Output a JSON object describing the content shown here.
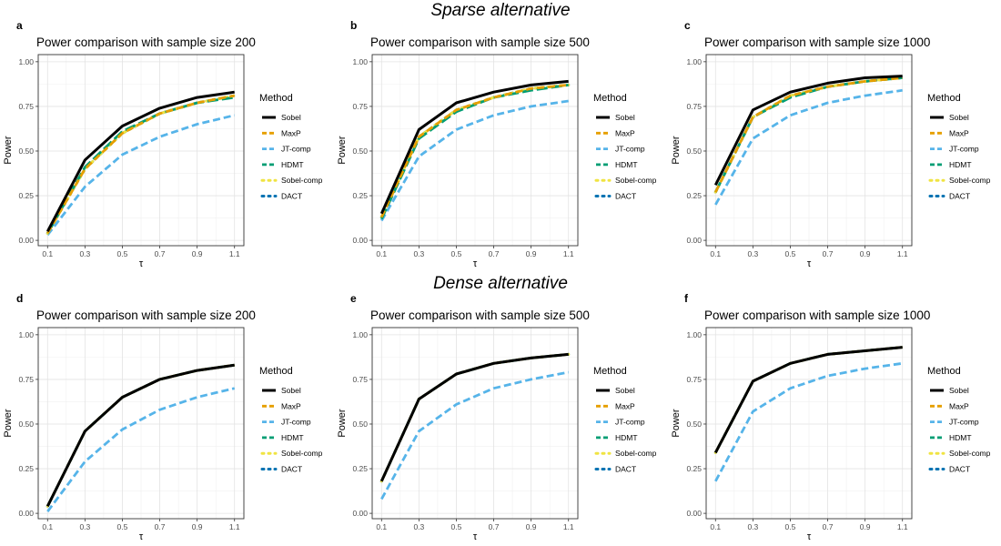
{
  "sections": [
    {
      "title": "Sparse alternative"
    },
    {
      "title": "Dense alternative"
    }
  ],
  "legend": {
    "title": "Method",
    "entries": [
      {
        "name": "Sobel",
        "color": "#000000",
        "dash": "solid"
      },
      {
        "name": "MaxP",
        "color": "#E69F00",
        "dash": "dashed"
      },
      {
        "name": "JT-comp",
        "color": "#56B4E9",
        "dash": "dashed"
      },
      {
        "name": "HDMT",
        "color": "#009E73",
        "dash": "longdash"
      },
      {
        "name": "Sobel-comp",
        "color": "#F0E442",
        "dash": "dotted"
      },
      {
        "name": "DACT",
        "color": "#0072B2",
        "dash": "dotted"
      }
    ]
  },
  "chart_data": [
    {
      "panel": "a",
      "type": "line",
      "title": "Power comparison with sample size 200",
      "xlabel": "τ",
      "ylabel": "Power",
      "x": [
        0.1,
        0.3,
        0.5,
        0.7,
        0.9,
        1.1
      ],
      "x_ticks": [
        "0.1",
        "0.3",
        "0.5",
        "0.7",
        "0.9",
        "1.1"
      ],
      "y_ticks": [
        "0.00",
        "0.25",
        "0.50",
        "0.75",
        "1.00"
      ],
      "xlim": [
        0.05,
        1.15
      ],
      "ylim": [
        -0.03,
        1.04
      ],
      "series": [
        {
          "name": "Sobel",
          "values": [
            0.05,
            0.45,
            0.64,
            0.74,
            0.8,
            0.83
          ]
        },
        {
          "name": "MaxP",
          "values": [
            0.04,
            0.4,
            0.6,
            0.71,
            0.77,
            0.81
          ]
        },
        {
          "name": "JT-comp",
          "values": [
            0.03,
            0.3,
            0.48,
            0.58,
            0.65,
            0.7
          ]
        },
        {
          "name": "HDMT",
          "values": [
            0.04,
            0.41,
            0.61,
            0.71,
            0.77,
            0.8
          ]
        },
        {
          "name": "Sobel-comp",
          "values": [
            0.04,
            0.4,
            0.6,
            0.71,
            0.77,
            0.81
          ]
        },
        {
          "name": "DACT",
          "values": [
            0.04,
            0.4,
            0.6,
            0.71,
            0.77,
            0.81
          ]
        }
      ]
    },
    {
      "panel": "b",
      "type": "line",
      "title": "Power comparison with sample size 500",
      "xlabel": "τ",
      "ylabel": "Power",
      "x": [
        0.1,
        0.3,
        0.5,
        0.7,
        0.9,
        1.1
      ],
      "x_ticks": [
        "0.1",
        "0.3",
        "0.5",
        "0.7",
        "0.9",
        "1.1"
      ],
      "y_ticks": [
        "0.00",
        "0.25",
        "0.50",
        "0.75",
        "1.00"
      ],
      "xlim": [
        0.05,
        1.15
      ],
      "ylim": [
        -0.03,
        1.04
      ],
      "series": [
        {
          "name": "Sobel",
          "values": [
            0.15,
            0.62,
            0.77,
            0.83,
            0.87,
            0.89
          ]
        },
        {
          "name": "MaxP",
          "values": [
            0.13,
            0.58,
            0.73,
            0.8,
            0.85,
            0.87
          ]
        },
        {
          "name": "JT-comp",
          "values": [
            0.11,
            0.47,
            0.62,
            0.7,
            0.75,
            0.78
          ]
        },
        {
          "name": "HDMT",
          "values": [
            0.12,
            0.57,
            0.72,
            0.8,
            0.84,
            0.87
          ]
        },
        {
          "name": "Sobel-comp",
          "values": [
            0.13,
            0.58,
            0.73,
            0.8,
            0.85,
            0.87
          ]
        },
        {
          "name": "DACT",
          "values": [
            0.13,
            0.58,
            0.73,
            0.8,
            0.85,
            0.87
          ]
        }
      ]
    },
    {
      "panel": "c",
      "type": "line",
      "title": "Power comparison with sample size 1000",
      "xlabel": "τ",
      "ylabel": "Power",
      "x": [
        0.1,
        0.3,
        0.5,
        0.7,
        0.9,
        1.1
      ],
      "x_ticks": [
        "0.1",
        "0.3",
        "0.5",
        "0.7",
        "0.9",
        "1.1"
      ],
      "y_ticks": [
        "0.00",
        "0.25",
        "0.50",
        "0.75",
        "1.00"
      ],
      "xlim": [
        0.05,
        1.15
      ],
      "ylim": [
        -0.03,
        1.04
      ],
      "series": [
        {
          "name": "Sobel",
          "values": [
            0.31,
            0.73,
            0.83,
            0.88,
            0.91,
            0.92
          ]
        },
        {
          "name": "MaxP",
          "values": [
            0.27,
            0.69,
            0.81,
            0.86,
            0.89,
            0.91
          ]
        },
        {
          "name": "JT-comp",
          "values": [
            0.2,
            0.57,
            0.7,
            0.77,
            0.81,
            0.84
          ]
        },
        {
          "name": "HDMT",
          "values": [
            0.27,
            0.69,
            0.8,
            0.86,
            0.89,
            0.91
          ]
        },
        {
          "name": "Sobel-comp",
          "values": [
            0.27,
            0.69,
            0.81,
            0.86,
            0.89,
            0.91
          ]
        },
        {
          "name": "DACT",
          "values": [
            0.27,
            0.69,
            0.81,
            0.86,
            0.89,
            0.91
          ]
        }
      ]
    },
    {
      "panel": "d",
      "type": "line",
      "title": "Power comparison with sample size 200",
      "xlabel": "τ",
      "ylabel": "Power",
      "x": [
        0.1,
        0.3,
        0.5,
        0.7,
        0.9,
        1.1
      ],
      "x_ticks": [
        "0.1",
        "0.3",
        "0.5",
        "0.7",
        "0.9",
        "1.1"
      ],
      "y_ticks": [
        "0.00",
        "0.25",
        "0.50",
        "0.75",
        "1.00"
      ],
      "xlim": [
        0.05,
        1.15
      ],
      "ylim": [
        -0.03,
        1.04
      ],
      "series": [
        {
          "name": "Sobel",
          "values": [
            0.04,
            0.46,
            0.65,
            0.75,
            0.8,
            0.83
          ]
        },
        {
          "name": "MaxP",
          "values": [
            0.04,
            0.46,
            0.65,
            0.75,
            0.8,
            0.83
          ]
        },
        {
          "name": "JT-comp",
          "values": [
            0.01,
            0.29,
            0.47,
            0.58,
            0.65,
            0.7
          ]
        },
        {
          "name": "HDMT",
          "values": [
            0.04,
            0.46,
            0.65,
            0.75,
            0.8,
            0.83
          ]
        },
        {
          "name": "Sobel-comp",
          "values": [
            0.04,
            0.46,
            0.65,
            0.75,
            0.8,
            0.83
          ]
        },
        {
          "name": "DACT",
          "values": [
            0.04,
            0.46,
            0.65,
            0.75,
            0.8,
            0.83
          ]
        }
      ]
    },
    {
      "panel": "e",
      "type": "line",
      "title": "Power comparison with sample size 500",
      "xlabel": "τ",
      "ylabel": "Power",
      "x": [
        0.1,
        0.3,
        0.5,
        0.7,
        0.9,
        1.1
      ],
      "x_ticks": [
        "0.1",
        "0.3",
        "0.5",
        "0.7",
        "0.9",
        "1.1"
      ],
      "y_ticks": [
        "0.00",
        "0.25",
        "0.50",
        "0.75",
        "1.00"
      ],
      "xlim": [
        0.05,
        1.15
      ],
      "ylim": [
        -0.03,
        1.04
      ],
      "series": [
        {
          "name": "Sobel",
          "values": [
            0.18,
            0.64,
            0.78,
            0.84,
            0.87,
            0.89
          ]
        },
        {
          "name": "MaxP",
          "values": [
            0.18,
            0.64,
            0.78,
            0.84,
            0.87,
            0.89
          ]
        },
        {
          "name": "JT-comp",
          "values": [
            0.08,
            0.46,
            0.61,
            0.7,
            0.75,
            0.79
          ]
        },
        {
          "name": "HDMT",
          "values": [
            0.18,
            0.64,
            0.78,
            0.84,
            0.87,
            0.89
          ]
        },
        {
          "name": "Sobel-comp",
          "values": [
            0.18,
            0.64,
            0.78,
            0.84,
            0.87,
            0.89
          ]
        },
        {
          "name": "DACT",
          "values": [
            0.18,
            0.64,
            0.78,
            0.84,
            0.87,
            0.89
          ]
        }
      ]
    },
    {
      "panel": "f",
      "type": "line",
      "title": "Power comparison with sample size 1000",
      "xlabel": "τ",
      "ylabel": "Power",
      "x": [
        0.1,
        0.3,
        0.5,
        0.7,
        0.9,
        1.1
      ],
      "x_ticks": [
        "0.1",
        "0.3",
        "0.5",
        "0.7",
        "0.9",
        "1.1"
      ],
      "y_ticks": [
        "0.00",
        "0.25",
        "0.50",
        "0.75",
        "1.00"
      ],
      "xlim": [
        0.05,
        1.15
      ],
      "ylim": [
        -0.03,
        1.04
      ],
      "series": [
        {
          "name": "Sobel",
          "values": [
            0.34,
            0.74,
            0.84,
            0.89,
            0.91,
            0.93
          ]
        },
        {
          "name": "MaxP",
          "values": [
            0.34,
            0.74,
            0.84,
            0.89,
            0.91,
            0.93
          ]
        },
        {
          "name": "JT-comp",
          "values": [
            0.18,
            0.57,
            0.7,
            0.77,
            0.81,
            0.84
          ]
        },
        {
          "name": "HDMT",
          "values": [
            0.34,
            0.74,
            0.84,
            0.89,
            0.91,
            0.93
          ]
        },
        {
          "name": "Sobel-comp",
          "values": [
            0.34,
            0.74,
            0.84,
            0.89,
            0.91,
            0.93
          ]
        },
        {
          "name": "DACT",
          "values": [
            0.34,
            0.74,
            0.84,
            0.89,
            0.91,
            0.93
          ]
        }
      ]
    }
  ]
}
